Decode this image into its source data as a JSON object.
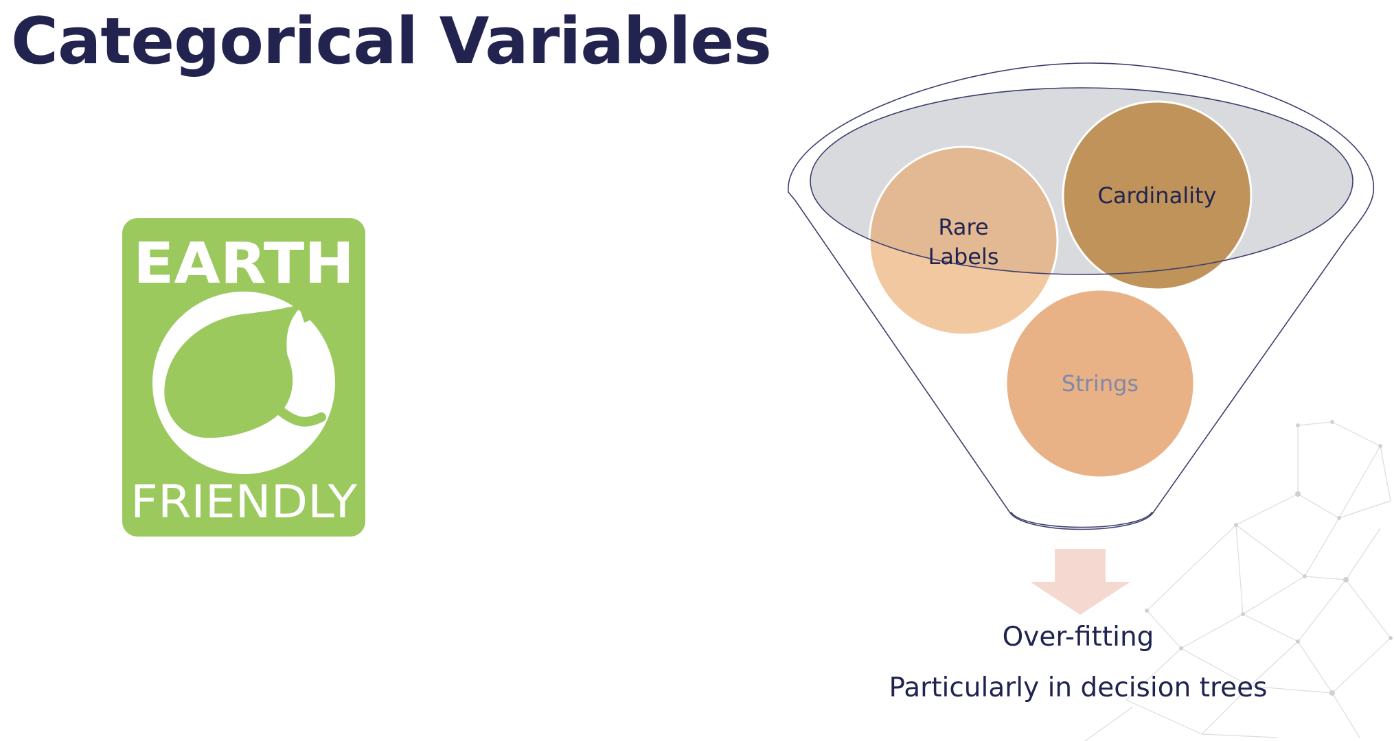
{
  "slide": {
    "title": "Categorical Variables"
  },
  "logo": {
    "top_text": "EARTH",
    "bottom_text": "FRIENDLY",
    "icon": "leaf-icon",
    "color": "#9bc95e"
  },
  "funnel": {
    "circles": [
      {
        "label_line1": "Rare",
        "label_line2": "Labels",
        "color": "#e8a361"
      },
      {
        "label": "Cardinality",
        "color": "#bf935a"
      },
      {
        "label": "Strings",
        "color": "#e9b286"
      }
    ],
    "arrow": "arrow-down-icon",
    "arrow_color": "#f5d8cf"
  },
  "output": {
    "line1": "Over-fitting",
    "line2": "Particularly in decision trees"
  },
  "colors": {
    "title": "#22244f",
    "text": "#1f2350",
    "funnel_outline": "#3b3d6e",
    "funnel_top_fill": "#d9dade"
  }
}
